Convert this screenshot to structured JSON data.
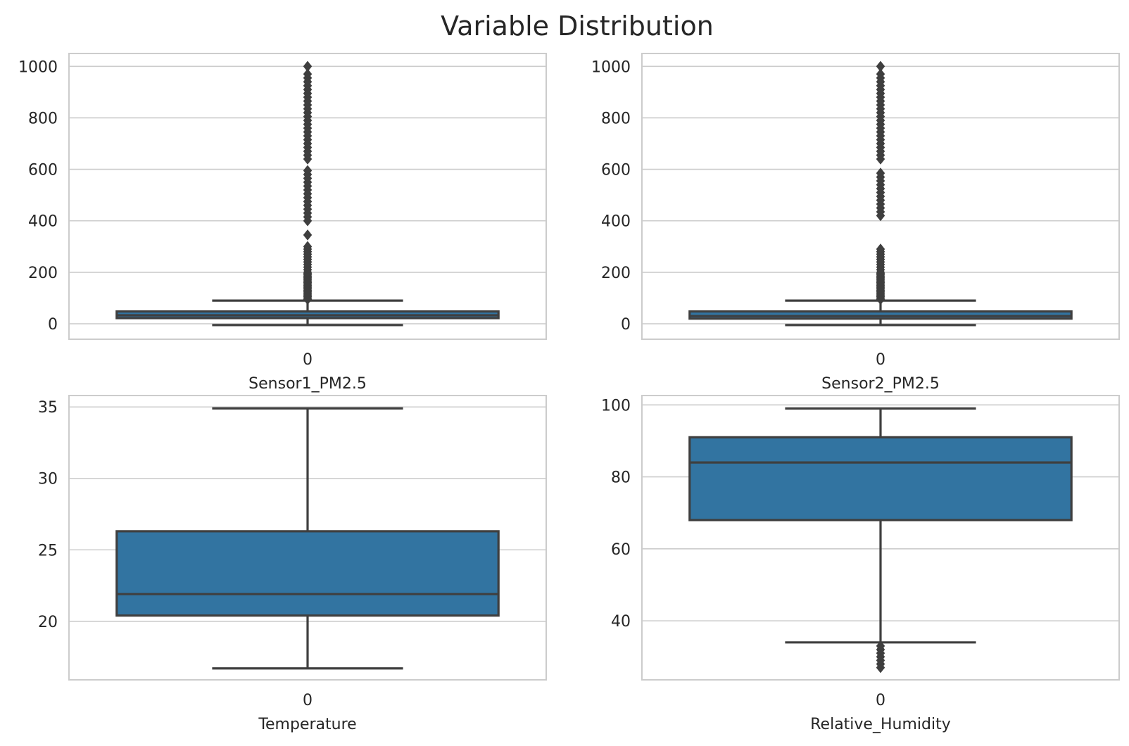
{
  "figure_title": "Variable Distribution",
  "chart_data": [
    {
      "type": "box",
      "xlabel": "Sensor1_PM2.5",
      "categories": [
        "0"
      ],
      "ylim": [
        -60,
        1050
      ],
      "yticks": [
        0,
        200,
        400,
        600,
        800,
        1000
      ],
      "grid": true,
      "box": {
        "q1": 22,
        "median": 33,
        "q3": 48,
        "whisker_low": -5,
        "whisker_high": 90
      },
      "outliers": [
        95,
        100,
        105,
        110,
        115,
        120,
        125,
        130,
        135,
        140,
        145,
        150,
        155,
        160,
        165,
        170,
        175,
        180,
        185,
        190,
        195,
        200,
        210,
        220,
        230,
        240,
        250,
        260,
        270,
        280,
        290,
        300,
        345,
        400,
        415,
        430,
        445,
        460,
        475,
        490,
        505,
        520,
        535,
        550,
        565,
        580,
        595,
        640,
        655,
        670,
        685,
        700,
        715,
        730,
        745,
        760,
        775,
        790,
        805,
        820,
        835,
        850,
        865,
        880,
        895,
        910,
        925,
        940,
        955,
        970,
        1000
      ]
    },
    {
      "type": "box",
      "xlabel": "Sensor2_PM2.5",
      "categories": [
        "0"
      ],
      "ylim": [
        -60,
        1050
      ],
      "yticks": [
        0,
        200,
        400,
        600,
        800,
        1000
      ],
      "grid": true,
      "box": {
        "q1": 20,
        "median": 30,
        "q3": 48,
        "whisker_low": -5,
        "whisker_high": 90
      },
      "outliers": [
        95,
        100,
        105,
        110,
        115,
        120,
        125,
        130,
        135,
        140,
        145,
        150,
        155,
        160,
        165,
        170,
        175,
        180,
        185,
        190,
        195,
        200,
        210,
        220,
        230,
        240,
        250,
        260,
        270,
        280,
        290,
        420,
        435,
        450,
        465,
        480,
        495,
        510,
        525,
        540,
        555,
        570,
        585,
        640,
        655,
        670,
        685,
        700,
        715,
        730,
        745,
        760,
        775,
        790,
        805,
        820,
        835,
        850,
        865,
        880,
        895,
        910,
        925,
        940,
        955,
        970,
        1000
      ]
    },
    {
      "type": "box",
      "xlabel": "Temperature",
      "categories": [
        "0"
      ],
      "ylim": [
        15.9,
        35.8
      ],
      "yticks": [
        20,
        25,
        30,
        35
      ],
      "grid": true,
      "box": {
        "q1": 20.4,
        "median": 21.9,
        "q3": 26.3,
        "whisker_low": 16.7,
        "whisker_high": 34.9
      },
      "outliers": []
    },
    {
      "type": "box",
      "xlabel": "Relative_Humidity",
      "categories": [
        "0"
      ],
      "ylim": [
        23.6,
        102.6
      ],
      "yticks": [
        40,
        60,
        80,
        100
      ],
      "grid": true,
      "box": {
        "q1": 68,
        "median": 84,
        "q3": 91,
        "whisker_low": 34,
        "whisker_high": 99
      },
      "outliers": [
        27,
        28,
        29,
        30,
        31,
        32,
        33
      ]
    }
  ],
  "colors": {
    "box": "#3274a1",
    "line": "#3f3f3f",
    "grid": "#cccccc",
    "spine": "#cccccc",
    "text": "#262626"
  }
}
